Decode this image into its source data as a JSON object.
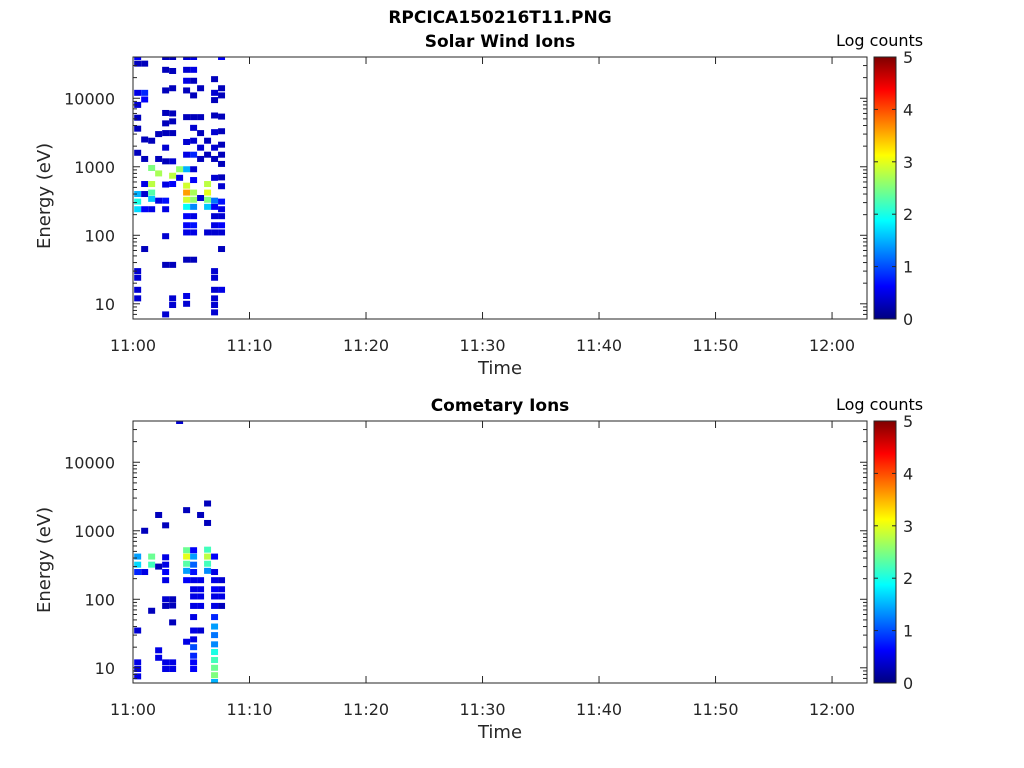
{
  "figure_title": "RPCICA150216T11.PNG",
  "colormap": [
    "#00007f",
    "#0000ff",
    "#007fff",
    "#00ffff",
    "#7fff7f",
    "#ffff00",
    "#ff7f00",
    "#ff0000",
    "#7f0000"
  ],
  "chart_data": [
    {
      "type": "heatmap",
      "title": "Solar Wind Ions",
      "xlabel": "Time",
      "ylabel": "Energy (eV)",
      "xticks": [
        "11:00",
        "11:10",
        "11:20",
        "11:30",
        "11:40",
        "11:50",
        "12:00"
      ],
      "xlim": [
        "11:00",
        "12:03"
      ],
      "yscale": "log",
      "yticks": [
        10,
        100,
        1000,
        10000
      ],
      "ytick_labels": [
        "10",
        "100",
        "1000",
        "10000"
      ],
      "ylim": [
        6,
        40000
      ],
      "colorbar": {
        "title": "Log counts",
        "ticks": [
          "0",
          "1",
          "2",
          "3",
          "4",
          "5"
        ],
        "range": [
          0,
          5
        ]
      },
      "cells": [
        [
          0.1,
          40000,
          0.6
        ],
        [
          0.1,
          32000,
          0.3
        ],
        [
          0.1,
          12000,
          0.5
        ],
        [
          0.1,
          8000,
          0.4
        ],
        [
          0.1,
          5200,
          0.3
        ],
        [
          0.1,
          3600,
          0.3
        ],
        [
          0.1,
          1600,
          0.3
        ],
        [
          0.1,
          400,
          1.5
        ],
        [
          0.1,
          310,
          2.0
        ],
        [
          0.1,
          240,
          1.7
        ],
        [
          0.1,
          30,
          0.4
        ],
        [
          0.1,
          24,
          0.4
        ],
        [
          0.1,
          16,
          0.4
        ],
        [
          0.1,
          12,
          0.4
        ],
        [
          0.7,
          32000,
          0.3
        ],
        [
          0.7,
          12000,
          0.8
        ],
        [
          0.7,
          9600,
          0.6
        ],
        [
          0.7,
          2500,
          0.3
        ],
        [
          0.7,
          1300,
          0.3
        ],
        [
          0.7,
          560,
          0.5
        ],
        [
          0.7,
          400,
          0.4
        ],
        [
          0.7,
          240,
          0.6
        ],
        [
          0.7,
          63,
          0.3
        ],
        [
          1.3,
          2400,
          0.3
        ],
        [
          1.3,
          960,
          2.5
        ],
        [
          1.3,
          560,
          2.8
        ],
        [
          1.3,
          420,
          2.3
        ],
        [
          1.3,
          340,
          1.6
        ],
        [
          1.3,
          240,
          0.5
        ],
        [
          1.9,
          3000,
          0.3
        ],
        [
          1.9,
          1300,
          0.3
        ],
        [
          1.9,
          800,
          2.7
        ],
        [
          1.9,
          320,
          0.5
        ],
        [
          2.5,
          40000,
          0.3
        ],
        [
          2.5,
          26000,
          0.3
        ],
        [
          2.5,
          13000,
          0.3
        ],
        [
          2.5,
          6100,
          0.3
        ],
        [
          2.5,
          4300,
          0.3
        ],
        [
          2.5,
          3100,
          0.3
        ],
        [
          2.5,
          1900,
          0.4
        ],
        [
          2.5,
          1200,
          0.3
        ],
        [
          2.5,
          550,
          0.5
        ],
        [
          2.5,
          320,
          0.7
        ],
        [
          2.5,
          240,
          0.5
        ],
        [
          2.5,
          97,
          0.4
        ],
        [
          2.5,
          37,
          0.3
        ],
        [
          2.5,
          7,
          0.4
        ],
        [
          3.1,
          40000,
          0.3
        ],
        [
          3.1,
          25000,
          0.3
        ],
        [
          3.1,
          14000,
          0.3
        ],
        [
          3.1,
          6000,
          0.3
        ],
        [
          3.1,
          4600,
          0.3
        ],
        [
          3.1,
          3100,
          0.3
        ],
        [
          3.1,
          1200,
          0.4
        ],
        [
          3.1,
          740,
          2.8
        ],
        [
          3.1,
          560,
          0.6
        ],
        [
          3.1,
          37,
          0.3
        ],
        [
          3.1,
          12,
          0.4
        ],
        [
          3.1,
          9.6,
          0.4
        ],
        [
          3.7,
          920,
          2.6
        ],
        [
          3.7,
          690,
          0.5
        ],
        [
          4.3,
          40000,
          0.4
        ],
        [
          4.3,
          26000,
          0.4
        ],
        [
          4.3,
          18000,
          0.5
        ],
        [
          4.3,
          13000,
          0.3
        ],
        [
          4.3,
          5300,
          0.3
        ],
        [
          4.3,
          2300,
          0.4
        ],
        [
          4.3,
          1500,
          0.5
        ],
        [
          4.3,
          920,
          1.5
        ],
        [
          4.3,
          530,
          2.9
        ],
        [
          4.3,
          420,
          3.6
        ],
        [
          4.3,
          330,
          2.9
        ],
        [
          4.3,
          260,
          1.9
        ],
        [
          4.3,
          190,
          0.6
        ],
        [
          4.3,
          140,
          0.6
        ],
        [
          4.3,
          110,
          0.5
        ],
        [
          4.3,
          44,
          0.3
        ],
        [
          4.3,
          13,
          0.5
        ],
        [
          4.3,
          10,
          0.4
        ],
        [
          4.9,
          40000,
          0.5
        ],
        [
          4.9,
          26000,
          0.5
        ],
        [
          4.9,
          18000,
          0.3
        ],
        [
          4.9,
          11000,
          0.3
        ],
        [
          4.9,
          5300,
          0.3
        ],
        [
          4.9,
          3700,
          0.4
        ],
        [
          4.9,
          2400,
          0.4
        ],
        [
          4.9,
          1500,
          0.8
        ],
        [
          4.9,
          920,
          0.4
        ],
        [
          4.9,
          640,
          0.6
        ],
        [
          4.9,
          420,
          2.7
        ],
        [
          4.9,
          330,
          2.6
        ],
        [
          4.9,
          260,
          1.3
        ],
        [
          4.9,
          190,
          0.5
        ],
        [
          4.9,
          140,
          0.7
        ],
        [
          4.9,
          110,
          0.5
        ],
        [
          4.9,
          44,
          0.3
        ],
        [
          5.5,
          14000,
          0.3
        ],
        [
          5.5,
          5300,
          0.3
        ],
        [
          5.5,
          3100,
          0.3
        ],
        [
          5.5,
          1900,
          0.4
        ],
        [
          5.5,
          1300,
          0.3
        ],
        [
          5.5,
          350,
          0.4
        ],
        [
          6.1,
          2400,
          0.3
        ],
        [
          6.1,
          1500,
          0.3
        ],
        [
          6.1,
          560,
          2.8
        ],
        [
          6.1,
          420,
          3.0
        ],
        [
          6.1,
          330,
          2.5
        ],
        [
          6.1,
          260,
          1.6
        ],
        [
          6.1,
          110,
          0.4
        ],
        [
          6.7,
          19000,
          0.3
        ],
        [
          6.7,
          12000,
          0.4
        ],
        [
          6.7,
          9400,
          0.3
        ],
        [
          6.7,
          5600,
          0.3
        ],
        [
          6.7,
          3200,
          0.4
        ],
        [
          6.7,
          1900,
          0.4
        ],
        [
          6.7,
          1300,
          0.3
        ],
        [
          6.7,
          690,
          0.4
        ],
        [
          6.7,
          320,
          1.2
        ],
        [
          6.7,
          260,
          0.6
        ],
        [
          6.7,
          190,
          0.4
        ],
        [
          6.7,
          140,
          0.5
        ],
        [
          6.7,
          110,
          0.4
        ],
        [
          6.7,
          30,
          0.4
        ],
        [
          6.7,
          24,
          0.4
        ],
        [
          6.7,
          16,
          0.4
        ],
        [
          6.7,
          12,
          0.4
        ],
        [
          6.7,
          9.6,
          0.4
        ],
        [
          6.7,
          7.5,
          0.4
        ],
        [
          7.3,
          40000,
          0.6
        ],
        [
          7.3,
          14000,
          0.3
        ],
        [
          7.3,
          11000,
          0.3
        ],
        [
          7.3,
          5400,
          0.3
        ],
        [
          7.3,
          3300,
          0.3
        ],
        [
          7.3,
          2100,
          0.3
        ],
        [
          7.3,
          1500,
          0.3
        ],
        [
          7.3,
          1100,
          0.3
        ],
        [
          7.3,
          700,
          0.3
        ],
        [
          7.3,
          520,
          0.4
        ],
        [
          7.3,
          310,
          0.7
        ],
        [
          7.3,
          240,
          0.5
        ],
        [
          7.3,
          190,
          0.4
        ],
        [
          7.3,
          140,
          0.6
        ],
        [
          7.3,
          110,
          0.4
        ],
        [
          7.3,
          63,
          0.3
        ],
        [
          7.3,
          16,
          0.5
        ]
      ]
    },
    {
      "type": "heatmap",
      "title": "Cometary Ions",
      "xlabel": "Time",
      "ylabel": "Energy (eV)",
      "xticks": [
        "11:00",
        "11:10",
        "11:20",
        "11:30",
        "11:40",
        "11:50",
        "12:00"
      ],
      "xlim": [
        "11:00",
        "12:03"
      ],
      "yscale": "log",
      "yticks": [
        10,
        100,
        1000,
        10000
      ],
      "ytick_labels": [
        "10",
        "100",
        "1000",
        "10000"
      ],
      "ylim": [
        6,
        40000
      ],
      "colorbar": {
        "title": "Log counts",
        "ticks": [
          "0",
          "1",
          "2",
          "3",
          "4",
          "5"
        ],
        "range": [
          0,
          5
        ]
      },
      "cells": [
        [
          0.1,
          420,
          1.4
        ],
        [
          0.1,
          320,
          1.7
        ],
        [
          0.1,
          250,
          0.8
        ],
        [
          0.1,
          35,
          0.4
        ],
        [
          0.1,
          12,
          0.5
        ],
        [
          0.1,
          9.6,
          0.5
        ],
        [
          0.1,
          7.5,
          0.5
        ],
        [
          0.7,
          1000,
          0.3
        ],
        [
          0.7,
          250,
          0.5
        ],
        [
          1.3,
          420,
          2.4
        ],
        [
          1.3,
          320,
          2.2
        ],
        [
          1.3,
          68,
          0.3
        ],
        [
          1.9,
          1700,
          0.3
        ],
        [
          1.9,
          300,
          0.3
        ],
        [
          1.9,
          18,
          0.5
        ],
        [
          1.9,
          14,
          0.5
        ],
        [
          2.5,
          1200,
          0.3
        ],
        [
          2.5,
          410,
          0.5
        ],
        [
          2.5,
          320,
          0.5
        ],
        [
          2.5,
          250,
          0.6
        ],
        [
          2.5,
          190,
          0.5
        ],
        [
          2.5,
          100,
          0.4
        ],
        [
          2.5,
          80,
          0.3
        ],
        [
          2.5,
          12,
          0.5
        ],
        [
          2.5,
          9.6,
          0.5
        ],
        [
          3.1,
          100,
          0.3
        ],
        [
          3.1,
          81,
          0.3
        ],
        [
          3.1,
          46,
          0.3
        ],
        [
          3.1,
          12,
          0.5
        ],
        [
          3.1,
          9.6,
          0.5
        ],
        [
          3.7,
          40000,
          0.4
        ],
        [
          4.3,
          2000,
          0.3
        ],
        [
          4.3,
          520,
          2.4
        ],
        [
          4.3,
          420,
          3.0
        ],
        [
          4.3,
          330,
          2.3
        ],
        [
          4.3,
          260,
          1.4
        ],
        [
          4.3,
          190,
          0.6
        ],
        [
          4.3,
          24,
          0.5
        ],
        [
          4.9,
          520,
          0.6
        ],
        [
          4.9,
          420,
          1.4
        ],
        [
          4.9,
          320,
          1.1
        ],
        [
          4.9,
          250,
          0.7
        ],
        [
          4.9,
          190,
          0.5
        ],
        [
          4.9,
          140,
          0.5
        ],
        [
          4.9,
          110,
          0.5
        ],
        [
          4.9,
          80,
          0.5
        ],
        [
          4.9,
          55,
          0.5
        ],
        [
          4.9,
          35,
          0.5
        ],
        [
          4.9,
          26,
          0.5
        ],
        [
          4.9,
          20,
          1.0
        ],
        [
          4.9,
          15,
          0.8
        ],
        [
          4.9,
          12,
          0.6
        ],
        [
          4.9,
          9.6,
          0.6
        ],
        [
          5.5,
          1700,
          0.3
        ],
        [
          5.5,
          190,
          0.5
        ],
        [
          5.5,
          140,
          0.5
        ],
        [
          5.5,
          110,
          0.5
        ],
        [
          5.5,
          80,
          0.5
        ],
        [
          5.5,
          35,
          0.4
        ],
        [
          6.1,
          2500,
          0.3
        ],
        [
          6.1,
          1300,
          0.3
        ],
        [
          6.1,
          530,
          2.2
        ],
        [
          6.1,
          420,
          2.8
        ],
        [
          6.1,
          330,
          2.2
        ],
        [
          6.1,
          260,
          1.3
        ],
        [
          6.7,
          420,
          0.6
        ],
        [
          6.7,
          250,
          0.5
        ],
        [
          6.7,
          190,
          0.5
        ],
        [
          6.7,
          140,
          0.6
        ],
        [
          6.7,
          110,
          0.5
        ],
        [
          6.7,
          80,
          0.5
        ],
        [
          6.7,
          55,
          0.8
        ],
        [
          6.7,
          40,
          1.4
        ],
        [
          6.7,
          30,
          1.2
        ],
        [
          6.7,
          22,
          1.3
        ],
        [
          6.7,
          17,
          2.0
        ],
        [
          6.7,
          13,
          2.2
        ],
        [
          6.7,
          10,
          2.4
        ],
        [
          6.7,
          7.8,
          2.5
        ],
        [
          6.7,
          6.2,
          1.5
        ],
        [
          7.3,
          190,
          0.4
        ],
        [
          7.3,
          140,
          0.5
        ],
        [
          7.3,
          110,
          0.5
        ],
        [
          7.3,
          80,
          0.3
        ]
      ]
    }
  ]
}
